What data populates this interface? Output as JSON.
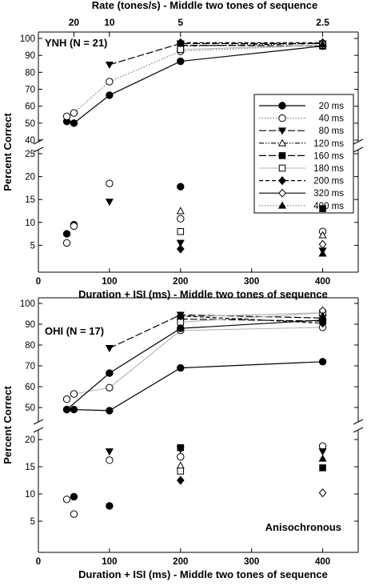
{
  "colors": {
    "ink": "#000000",
    "light_line": "#b5b5b5",
    "mid_line": "#777777"
  },
  "figure": {
    "top_axis_title": "Rate (tones/s) - Middle two tones of sequence",
    "top_axis_ticks": [
      {
        "label": "20",
        "x": 50
      },
      {
        "label": "10",
        "x": 100
      },
      {
        "label": "5",
        "x": 200
      },
      {
        "label": "2.5",
        "x": 400
      }
    ],
    "ylabel": "Percent Correct",
    "xlabel": "Duration + ISI (ms) - Middle two tones of sequence",
    "xticks": [
      "0",
      "100",
      "200",
      "300",
      "400"
    ],
    "annotation": "Anisochronous"
  },
  "chart_data": [
    {
      "type": "scatter",
      "panel": "YNH (N = 21)",
      "xlim": [
        0,
        450
      ],
      "ylim_upper": [
        40,
        100
      ],
      "ylim_lower": [
        0,
        25
      ],
      "axis_break": "between 25 and 40",
      "upper_yticks": [
        "40",
        "50",
        "60",
        "70",
        "80",
        "90",
        "100"
      ],
      "lower_yticks": [
        "5",
        "10",
        "15",
        "20",
        "25"
      ],
      "legend_position": "right, upper half",
      "series": [
        {
          "name": "20 ms",
          "marker": "circle-filled",
          "line": "solid",
          "sync": [
            [
              40,
              51
            ],
            [
              50,
              50
            ],
            [
              100,
              66.5
            ],
            [
              200,
              86.5
            ],
            [
              400,
              95.5
            ]
          ],
          "async": [
            [
              40,
              7.5
            ],
            [
              50,
              9.5
            ],
            [
              200,
              17.8
            ]
          ]
        },
        {
          "name": "40 ms",
          "marker": "circle-open",
          "line": "dotted",
          "sync": [
            [
              40,
              54
            ],
            [
              50,
              56
            ],
            [
              100,
              74.5
            ],
            [
              200,
              92.5
            ],
            [
              400,
              96
            ]
          ],
          "async": [
            [
              40,
              5.5
            ],
            [
              50,
              9.2
            ],
            [
              100,
              18.5
            ],
            [
              200,
              10.8
            ],
            [
              400,
              8
            ]
          ]
        },
        {
          "name": "80 ms",
          "marker": "tri-down-filled",
          "line": "long-dash",
          "sync": [
            [
              100,
              84.5
            ],
            [
              200,
              97
            ],
            [
              400,
              97
            ]
          ],
          "async": [
            [
              100,
              14.5
            ],
            [
              200,
              5.5
            ],
            [
              400,
              3.8
            ]
          ]
        },
        {
          "name": "120 ms",
          "marker": "tri-up-open",
          "line": "dash-dot-dot",
          "sync": [
            [
              200,
              95.5
            ],
            [
              400,
              97
            ]
          ],
          "async": [
            [
              200,
              12.5
            ],
            [
              400,
              7.2
            ]
          ]
        },
        {
          "name": "160 ms",
          "marker": "square-filled",
          "line": "long-dash",
          "sync": [
            [
              200,
              96
            ],
            [
              400,
              95.5
            ]
          ],
          "async": [
            [
              400,
              13
            ]
          ]
        },
        {
          "name": "180 ms",
          "marker": "square-open",
          "line": "solid-light",
          "sync": [
            [
              200,
              93.5
            ],
            [
              400,
              96
            ]
          ],
          "async": [
            [
              200,
              8
            ]
          ]
        },
        {
          "name": "200 ms",
          "marker": "diamond-filled",
          "line": "dashed",
          "sync": [
            [
              200,
              97.5
            ],
            [
              400,
              97.5
            ]
          ],
          "async": [
            [
              200,
              4.2
            ]
          ]
        },
        {
          "name": "320 ms",
          "marker": "diamond-open",
          "line": "solid",
          "sync": [
            [
              400,
              97
            ]
          ],
          "async": [
            [
              400,
              5.2
            ]
          ]
        },
        {
          "name": "400 ms",
          "marker": "tri-up-filled",
          "line": "dotted",
          "sync": [
            [
              400,
              96.5
            ]
          ],
          "async": [
            [
              400,
              3.2
            ]
          ]
        }
      ]
    },
    {
      "type": "scatter",
      "panel": "OHI (N = 17)",
      "xlim": [
        0,
        450
      ],
      "ylim_upper": [
        40,
        100
      ],
      "ylim_lower": [
        0,
        20
      ],
      "axis_break": "between 20 and 40",
      "upper_yticks": [
        "50",
        "60",
        "70",
        "80",
        "90",
        "100"
      ],
      "lower_yticks": [
        "5",
        "10",
        "15",
        "20"
      ],
      "series": [
        {
          "name": "20 ms",
          "marker": "circle-filled",
          "line": "solid",
          "sync": [
            [
              40,
              49
            ],
            [
              50,
              49
            ],
            [
              100,
              48.5
            ],
            [
              200,
              69
            ],
            [
              400,
              72
            ]
          ],
          "async": [
            [
              50,
              9.5
            ],
            [
              100,
              7.8
            ]
          ]
        },
        {
          "name": "40 ms",
          "marker": "circle-open",
          "line": "solid-light",
          "sync": [
            [
              40,
              54
            ],
            [
              50,
              56.5
            ],
            [
              100,
              59.5
            ],
            [
              200,
              87
            ],
            [
              400,
              88.5
            ]
          ],
          "async": [
            [
              40,
              9
            ],
            [
              50,
              6.3
            ],
            [
              100,
              16.2
            ],
            [
              200,
              16.8
            ],
            [
              400,
              18.8
            ]
          ]
        },
        {
          "name": "80 ms",
          "marker": "tri-down-filled",
          "line": "long-dash",
          "sync": [
            [
              100,
              78.5
            ],
            [
              200,
              94.5
            ],
            [
              400,
              93
            ]
          ],
          "async": [
            [
              100,
              17.8
            ],
            [
              200,
              18.2
            ],
            [
              400,
              17.8
            ]
          ]
        },
        {
          "name": "120 ms",
          "marker": "tri-up-open",
          "line": "solid-light",
          "sync": [
            [
              200,
              93.5
            ],
            [
              400,
              95.5
            ]
          ],
          "async": [
            [
              200,
              15.2
            ]
          ]
        },
        {
          "name": "160 ms",
          "marker": "square-filled",
          "line": "long-dash",
          "sync": [
            [
              200,
              92.5
            ],
            [
              400,
              91.5
            ]
          ],
          "async": [
            [
              200,
              18.5
            ],
            [
              400,
              14.8
            ]
          ]
        },
        {
          "name": "180 ms",
          "marker": "square-open",
          "line": "solid-light",
          "sync": [
            [
              200,
              91
            ],
            [
              400,
              95.5
            ]
          ],
          "async": [
            [
              200,
              14.2
            ]
          ]
        },
        {
          "name": "200 ms",
          "marker": "diamond-filled",
          "line": "dashed",
          "sync": [
            [
              200,
              94
            ],
            [
              400,
              90.5
            ]
          ],
          "async": [
            [
              200,
              12.5
            ]
          ]
        },
        {
          "name": "320 ms",
          "marker": "diamond-open",
          "line": "solid",
          "sync": [
            [
              400,
              96.5
            ]
          ],
          "async": [
            [
              400,
              10.2
            ]
          ]
        },
        {
          "name": "400 ms",
          "marker": "tri-up-filled",
          "line": "dotted",
          "sync": [
            [
              400,
              94
            ]
          ],
          "async": [
            [
              400,
              16.5
            ]
          ]
        },
        {
          "name": "",
          "marker": "circle-filled",
          "line": "solid",
          "sync": [
            [
              40,
              49
            ],
            [
              100,
              66.5
            ],
            [
              200,
              88
            ],
            [
              400,
              92
            ]
          ],
          "async": []
        }
      ]
    }
  ]
}
